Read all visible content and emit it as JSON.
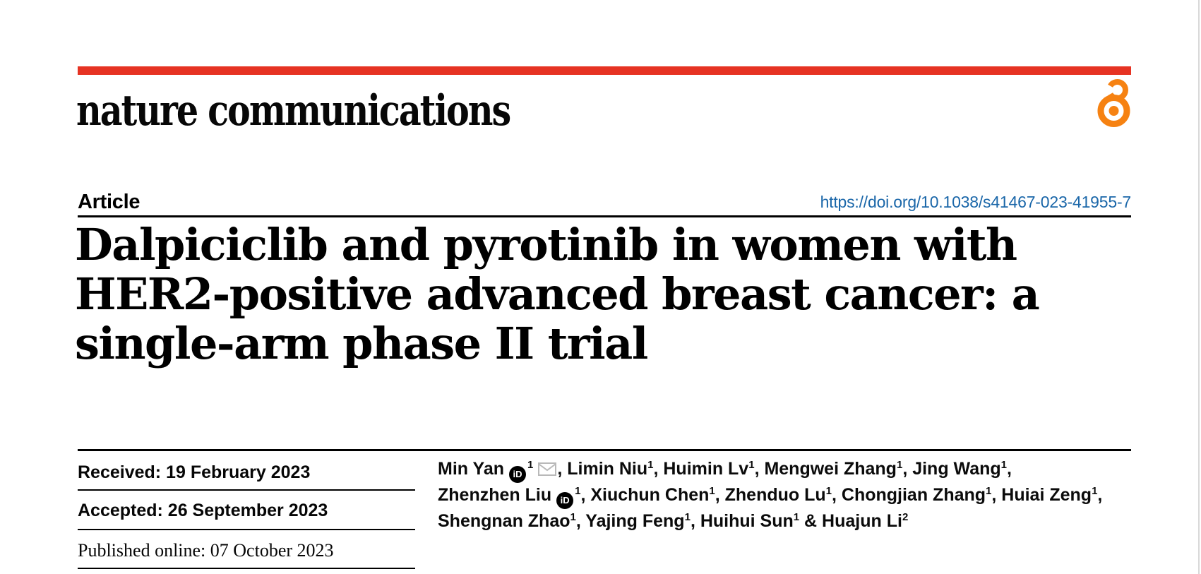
{
  "masthead": {
    "wordmark": "nature communications",
    "brand_red": "#e63323",
    "open_access_orange": "#f68212",
    "open_access_icon": "open-padlock"
  },
  "article_header": {
    "kicker": "Article",
    "doi_link": "https://doi.org/10.1038/s41467-023-41955-7",
    "link_blue": "#1b67a9",
    "title_lines": [
      "Dalpiciclib and pyrotinib in women with",
      "HER2-positive advanced breast cancer: a",
      "single-arm phase II trial"
    ]
  },
  "timeline": {
    "received": "Received: 19 February 2023",
    "accepted": "Accepted: 26 September 2023",
    "published": "Published online: 07 October 2023"
  },
  "authors": {
    "orcid_icon_label": "iD",
    "lines": [
      {
        "segments": [
          {
            "type": "text",
            "value": "Min Yan"
          },
          {
            "type": "orcid-icon"
          },
          {
            "type": "sup",
            "value": "1"
          },
          {
            "type": "email-icon"
          },
          {
            "type": "text",
            "value": ", Limin Niu"
          },
          {
            "type": "sup",
            "value": "1"
          },
          {
            "type": "text",
            "value": ", Huimin Lv"
          },
          {
            "type": "sup",
            "value": "1"
          },
          {
            "type": "text",
            "value": ", Mengwei Zhang"
          },
          {
            "type": "sup",
            "value": "1"
          },
          {
            "type": "text",
            "value": ", Jing Wang"
          },
          {
            "type": "sup",
            "value": "1"
          },
          {
            "type": "text",
            "value": ","
          }
        ]
      },
      {
        "segments": [
          {
            "type": "text",
            "value": "Zhenzhen Liu"
          },
          {
            "type": "orcid-icon"
          },
          {
            "type": "sup",
            "value": "1"
          },
          {
            "type": "text",
            "value": ", Xiuchun Chen"
          },
          {
            "type": "sup",
            "value": "1"
          },
          {
            "type": "text",
            "value": ", Zhenduo Lu"
          },
          {
            "type": "sup",
            "value": "1"
          },
          {
            "type": "text",
            "value": ", Chongjian Zhang"
          },
          {
            "type": "sup",
            "value": "1"
          },
          {
            "type": "text",
            "value": ", Huiai Zeng"
          },
          {
            "type": "sup",
            "value": "1"
          },
          {
            "type": "text",
            "value": ","
          }
        ]
      },
      {
        "segments": [
          {
            "type": "text",
            "value": "Shengnan Zhao"
          },
          {
            "type": "sup",
            "value": "1"
          },
          {
            "type": "text",
            "value": ", Yajing Feng"
          },
          {
            "type": "sup",
            "value": "1"
          },
          {
            "type": "text",
            "value": ", Huihui Sun"
          },
          {
            "type": "sup",
            "value": "1"
          },
          {
            "type": "text",
            "value": " & Huajun Li"
          },
          {
            "type": "sup",
            "value": "2"
          }
        ]
      }
    ]
  }
}
